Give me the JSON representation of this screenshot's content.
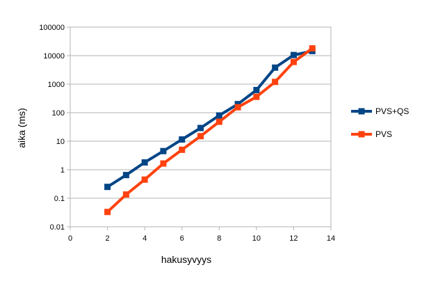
{
  "chart_data": {
    "type": "line",
    "title": "",
    "xlabel": "hakusyvyys",
    "ylabel": "aika (ms)",
    "xlim": [
      0,
      14
    ],
    "ylim": [
      0.01,
      100000
    ],
    "y_scale": "log",
    "x_ticks": [
      0,
      2,
      4,
      6,
      8,
      10,
      12,
      14
    ],
    "x_tick_labels": [
      "0",
      "2",
      "4",
      "6",
      "8",
      "10",
      "12",
      "14"
    ],
    "y_ticks": [
      0.01,
      0.1,
      1,
      10,
      100,
      1000,
      10000,
      100000
    ],
    "y_tick_labels": [
      "0.01",
      "0.1",
      "1",
      "10",
      "100",
      "1000",
      "10000",
      "100000"
    ],
    "grid": "horizontal",
    "legend_position": "right",
    "series": [
      {
        "name": "PVS+QS",
        "color": "#004586",
        "x": [
          2,
          3,
          4,
          5,
          6,
          7,
          8,
          9,
          10,
          11,
          12,
          13
        ],
        "y": [
          0.25,
          0.65,
          1.8,
          4.5,
          11.5,
          29,
          80,
          200,
          620,
          3800,
          10500,
          14500
        ]
      },
      {
        "name": "PVS",
        "color": "#ff420e",
        "x": [
          2,
          3,
          4,
          5,
          6,
          7,
          8,
          9,
          10,
          11,
          12,
          13
        ],
        "y": [
          0.033,
          0.135,
          0.45,
          1.65,
          5,
          15,
          48,
          155,
          360,
          1200,
          6000,
          18000
        ]
      }
    ]
  }
}
